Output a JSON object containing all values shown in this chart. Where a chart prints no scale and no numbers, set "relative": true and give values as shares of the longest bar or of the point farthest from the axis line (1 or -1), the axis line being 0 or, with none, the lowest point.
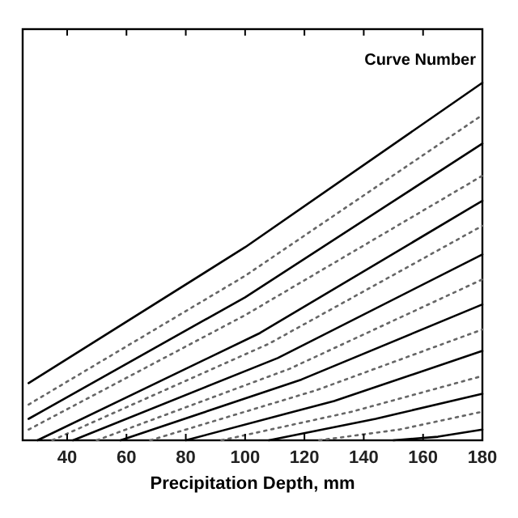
{
  "chart_data": {
    "type": "line",
    "relative": true,
    "xlabel": "Precipitation Depth, mm",
    "xlim": [
      25,
      180
    ],
    "xticks": [
      40,
      60,
      80,
      100,
      120,
      140,
      160,
      180
    ],
    "tick_labels": "x",
    "grid": false,
    "annotations": [
      "Curve Number"
    ],
    "series": [
      {
        "color": "#000000",
        "line_style": "solid",
        "x": [
          27,
          100,
          180
        ],
        "values": [
          0.16,
          0.54,
          1
        ]
      },
      {
        "color": "#666666",
        "line_style": "dotted",
        "x": [
          27,
          100,
          180
        ],
        "values": [
          0.1,
          0.46,
          0.91
        ]
      },
      {
        "color": "#000000",
        "line_style": "solid",
        "x": [
          27,
          100,
          180
        ],
        "values": [
          0.06,
          0.4,
          0.83
        ]
      },
      {
        "color": "#666666",
        "line_style": "dotted",
        "x": [
          27,
          100,
          180
        ],
        "values": [
          0.03,
          0.35,
          0.74
        ]
      },
      {
        "color": "#000000",
        "line_style": "solid",
        "x": [
          30,
          105,
          180
        ],
        "values": [
          0,
          0.3,
          0.67
        ]
      },
      {
        "color": "#666666",
        "line_style": "dotted",
        "x": [
          35,
          108,
          180
        ],
        "values": [
          0,
          0.27,
          0.6
        ]
      },
      {
        "color": "#000000",
        "line_style": "solid",
        "x": [
          42,
          111,
          180
        ],
        "values": [
          0,
          0.23,
          0.52
        ]
      },
      {
        "color": "#666666",
        "line_style": "dotted",
        "x": [
          50,
          115,
          180
        ],
        "values": [
          0,
          0.2,
          0.45
        ]
      },
      {
        "color": "#000000",
        "line_style": "solid",
        "x": [
          58,
          119,
          180
        ],
        "values": [
          0,
          0.17,
          0.38
        ]
      },
      {
        "color": "#666666",
        "line_style": "dotted",
        "x": [
          68,
          124,
          180
        ],
        "values": [
          0,
          0.14,
          0.31
        ]
      },
      {
        "color": "#000000",
        "line_style": "solid",
        "x": [
          80,
          130,
          180
        ],
        "values": [
          0,
          0.11,
          0.25
        ]
      },
      {
        "color": "#666666",
        "line_style": "dotted",
        "x": [
          92,
          136,
          180
        ],
        "values": [
          0,
          0.08,
          0.18
        ]
      },
      {
        "color": "#000000",
        "line_style": "solid",
        "x": [
          108,
          144,
          180
        ],
        "values": [
          0,
          0.06,
          0.13
        ]
      },
      {
        "color": "#666666",
        "line_style": "dotted",
        "x": [
          125,
          152,
          180
        ],
        "values": [
          0,
          0.03,
          0.08
        ]
      },
      {
        "color": "#000000",
        "line_style": "solid",
        "x": [
          150,
          165,
          180
        ],
        "values": [
          0,
          0.01,
          0.03
        ]
      }
    ]
  }
}
